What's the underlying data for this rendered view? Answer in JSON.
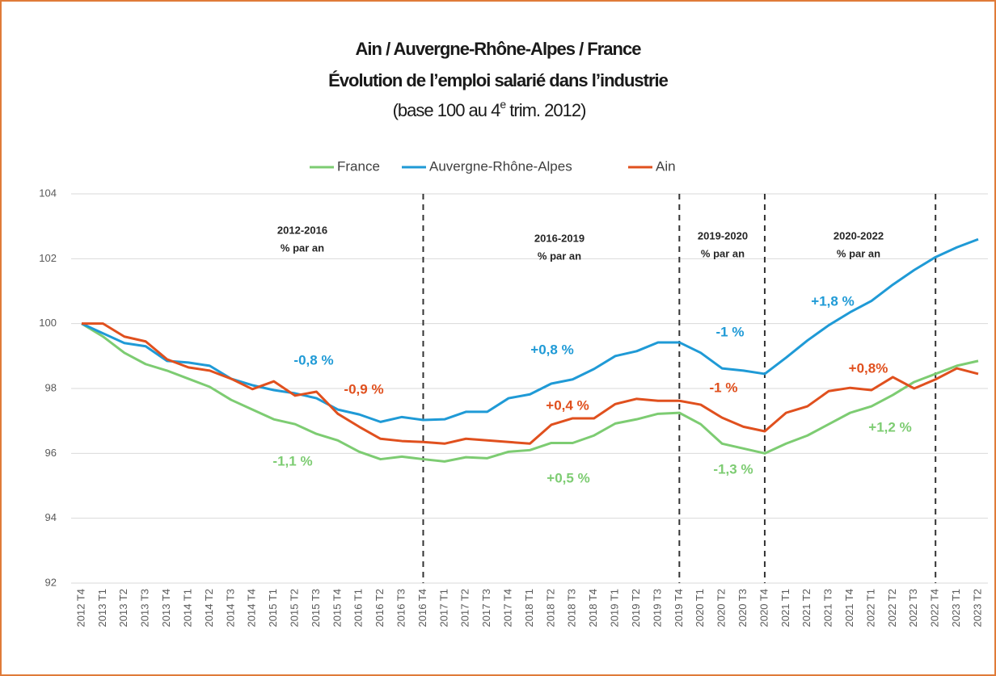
{
  "chart_data": {
    "type": "line",
    "title": "Ain / Auvergne-Rhône-Alpes / France",
    "subtitle": "Évolution de l’emploi salarié dans l’industrie",
    "note": [
      "(base 100 au 4",
      "e",
      " trim. 2012)"
    ],
    "categories": [
      "2012 T4",
      "2013 T1",
      "2013 T2",
      "2013 T3",
      "2013 T4",
      "2014 T1",
      "2014 T2",
      "2014 T3",
      "2014 T4",
      "2015 T1",
      "2015 T2",
      "2015 T3",
      "2015 T4",
      "2016 T1",
      "2016 T2",
      "2016 T3",
      "2016 T4",
      "2017 T1",
      "2017 T2",
      "2017 T3",
      "2017 T4",
      "2018 T1",
      "2018 T2",
      "2018 T3",
      "2018 T4",
      "2019 T1",
      "2019 T2",
      "2019 T3",
      "2019 T4",
      "2020 T1",
      "2020 T2",
      "2020 T3",
      "2020 T4",
      "2021 T1",
      "2021 T2",
      "2021 T3",
      "2021 T4",
      "2022 T1",
      "2022 T2",
      "2022 T3",
      "2022 T4",
      "2023 T1",
      "2023 T2"
    ],
    "series": [
      {
        "name": "France",
        "color": "#7dcc72",
        "values": [
          100,
          99.6,
          99.1,
          98.75,
          98.55,
          98.3,
          98.05,
          97.65,
          97.35,
          97.05,
          96.9,
          96.6,
          96.4,
          96.05,
          95.82,
          95.9,
          95.82,
          95.75,
          95.88,
          95.85,
          96.05,
          96.1,
          96.32,
          96.32,
          96.55,
          96.92,
          97.05,
          97.22,
          97.25,
          96.9,
          96.3,
          96.15,
          96.0,
          96.3,
          96.55,
          96.9,
          97.25,
          97.45,
          97.8,
          98.2,
          98.45,
          98.7,
          98.85
        ]
      },
      {
        "name": "Auvergne-Rhône-Alpes",
        "color": "#1f9ad6",
        "values": [
          100,
          99.7,
          99.4,
          99.3,
          98.85,
          98.8,
          98.7,
          98.3,
          98.1,
          97.95,
          97.85,
          97.7,
          97.35,
          97.2,
          96.97,
          97.12,
          97.03,
          97.05,
          97.28,
          97.28,
          97.7,
          97.82,
          98.15,
          98.28,
          98.6,
          99.0,
          99.15,
          99.42,
          99.42,
          99.1,
          98.62,
          98.55,
          98.45,
          98.95,
          99.48,
          99.95,
          100.35,
          100.7,
          101.2,
          101.65,
          102.05,
          102.35,
          102.6
        ]
      },
      {
        "name": "Ain",
        "color": "#e0501e",
        "values": [
          100,
          100,
          99.6,
          99.45,
          98.9,
          98.65,
          98.55,
          98.3,
          97.98,
          98.22,
          97.78,
          97.9,
          97.22,
          96.82,
          96.45,
          96.38,
          96.35,
          96.3,
          96.45,
          96.4,
          96.35,
          96.3,
          96.88,
          97.08,
          97.08,
          97.52,
          97.68,
          97.62,
          97.62,
          97.5,
          97.1,
          96.82,
          96.68,
          97.25,
          97.45,
          97.92,
          98.02,
          97.95,
          98.35,
          98.0,
          98.28,
          98.62,
          98.45
        ]
      }
    ],
    "ylim": [
      92,
      104
    ],
    "yticks": [
      92,
      94,
      96,
      98,
      100,
      102,
      104
    ],
    "grid": true,
    "legend": "top",
    "periods": [
      {
        "label": "2012-2016",
        "unit": "% par an",
        "end": "2016 T4"
      },
      {
        "label": "2016-2019",
        "unit": "% par an",
        "end": "2019 T4"
      },
      {
        "label": "2019-2020",
        "unit": "% par an",
        "end": "2020 T4"
      },
      {
        "label": "2020-2022",
        "unit": "% par an",
        "end": "2022 T4"
      }
    ],
    "annotations": [
      {
        "text": "-0,8 %",
        "color": "#1f9ad6"
      },
      {
        "text": "-0,9 %",
        "color": "#e0501e"
      },
      {
        "text": "-1,1 %",
        "color": "#7dcc72"
      },
      {
        "text": "+0,8 %",
        "color": "#1f9ad6"
      },
      {
        "text": "+0,4 %",
        "color": "#e0501e"
      },
      {
        "text": "+0,5 %",
        "color": "#7dcc72"
      },
      {
        "text": "-1 %",
        "color": "#1f9ad6"
      },
      {
        "text": "-1 %",
        "color": "#e0501e"
      },
      {
        "text": "-1,3 %",
        "color": "#7dcc72"
      },
      {
        "text": "+1,8 %",
        "color": "#1f9ad6"
      },
      {
        "text": "+0,8%",
        "color": "#e0501e"
      },
      {
        "text": "+1,2 %",
        "color": "#7dcc72"
      }
    ]
  }
}
